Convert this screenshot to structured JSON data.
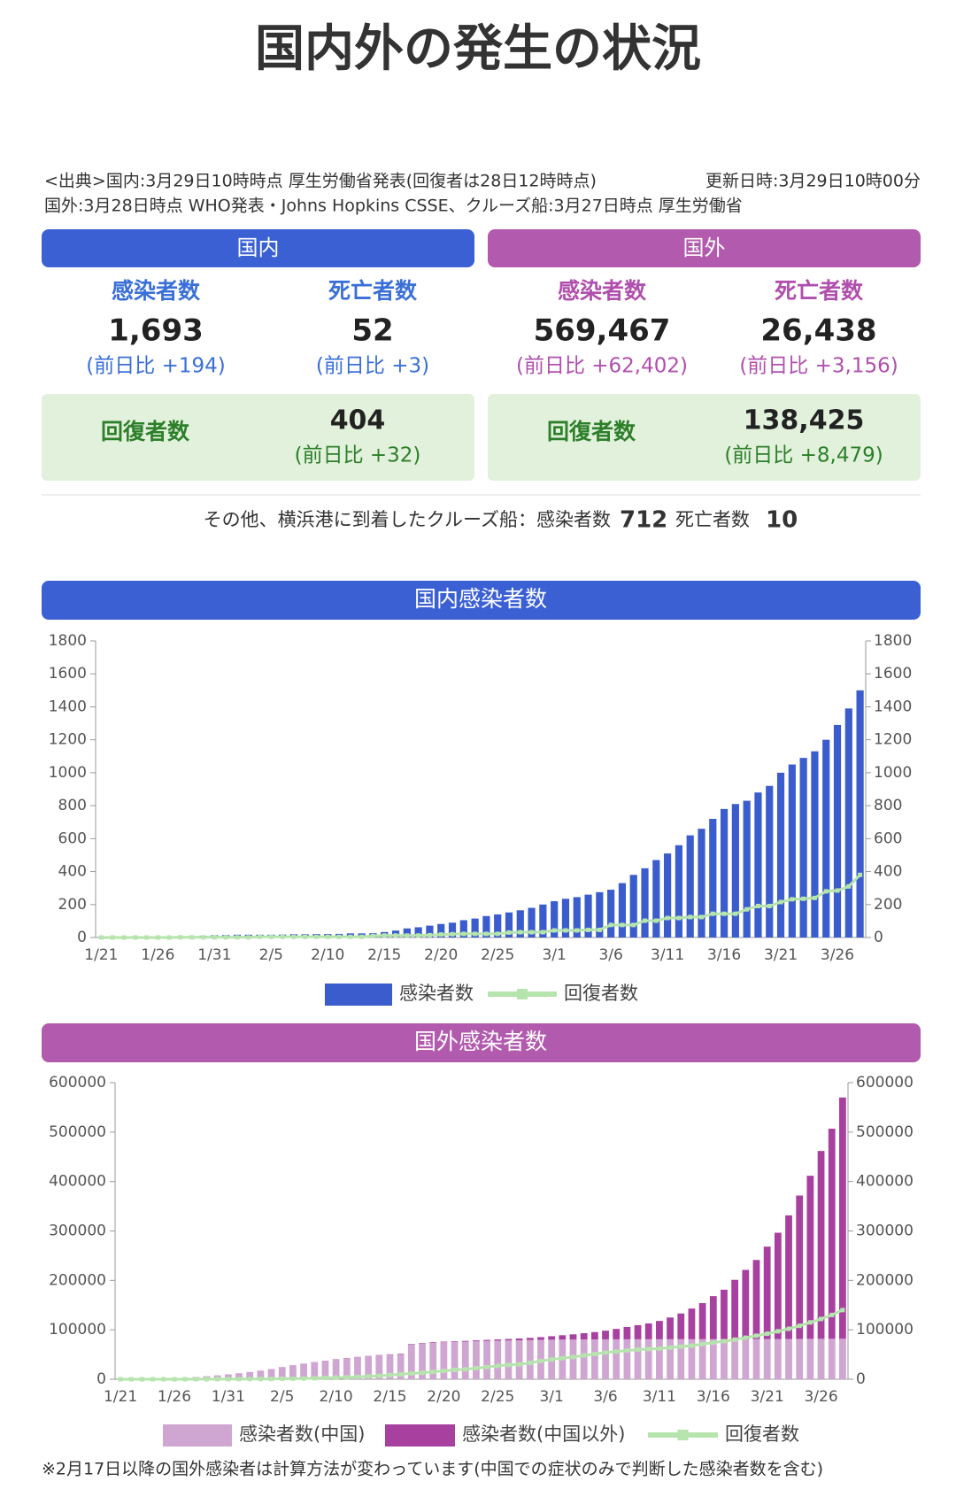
{
  "header": {
    "title": "国内外の発生の状況",
    "source_line1": "<出典>国内:3月29日10時時点 厚生労働省発表(回復者は28日12時時点)",
    "updated": "更新日時:3月29日10時00分",
    "source_line2": "国外:3月28日時点 WHO発表・Johns Hopkins CSSE、クルーズ船:3月27日時点 厚生労働省"
  },
  "panels": [
    {
      "title": "国内",
      "stats": [
        {
          "label": "感染者数",
          "value": "1,693",
          "change": "(前日比 +194)"
        },
        {
          "label": "死亡者数",
          "value": "52",
          "change": "(前日比 +3)"
        }
      ],
      "recovered": {
        "label": "回復者数",
        "value": "404",
        "change": "(前日比 +32)"
      }
    },
    {
      "title": "国外",
      "stats": [
        {
          "label": "感染者数",
          "value": "569,467",
          "change": "(前日比 +62,402)"
        },
        {
          "label": "死亡者数",
          "value": "26,438",
          "change": "(前日比 +3,156)"
        }
      ],
      "recovered": {
        "label": "回復者数",
        "value": "138,425",
        "change": "(前日比 +8,479)"
      }
    }
  ],
  "cruise": {
    "label": "その他、横浜港に到着したクルーズ船：感染者数",
    "infected": "712",
    "death_label": "死亡者数",
    "deaths": "10"
  },
  "chart_data": [
    {
      "type": "bar",
      "title": "国内感染者数",
      "categories": [
        "1/21",
        null,
        null,
        null,
        null,
        "1/26",
        null,
        null,
        null,
        null,
        "1/31",
        null,
        null,
        null,
        null,
        "2/5",
        null,
        null,
        null,
        null,
        "2/10",
        null,
        null,
        null,
        null,
        "2/15",
        null,
        null,
        null,
        null,
        "2/20",
        null,
        null,
        null,
        null,
        "2/25",
        null,
        null,
        null,
        null,
        "3/1",
        null,
        null,
        null,
        null,
        "3/6",
        null,
        null,
        null,
        null,
        "3/11",
        null,
        null,
        null,
        null,
        "3/16",
        null,
        null,
        null,
        null,
        "3/21",
        null,
        null,
        null,
        null,
        "3/26",
        null,
        null
      ],
      "series": [
        {
          "name": "感染者数",
          "type": "bar",
          "color": "#3a5ccc",
          "values": [
            1,
            1,
            1,
            1,
            2,
            3,
            4,
            6,
            7,
            11,
            14,
            15,
            17,
            17,
            17,
            17,
            18,
            20,
            20,
            21,
            21,
            22,
            25,
            25,
            26,
            33,
            42,
            55,
            62,
            72,
            82,
            90,
            105,
            115,
            130,
            140,
            152,
            165,
            180,
            200,
            220,
            235,
            245,
            260,
            275,
            290,
            330,
            380,
            420,
            470,
            510,
            560,
            620,
            660,
            720,
            780,
            810,
            830,
            880,
            920,
            1000,
            1050,
            1090,
            1130,
            1200,
            1290,
            1390,
            1500
          ]
        },
        {
          "name": "回復者数",
          "type": "line",
          "color": "#b6e4ad",
          "values": [
            0,
            0,
            0,
            0,
            0,
            0,
            0,
            1,
            1,
            1,
            1,
            1,
            1,
            1,
            4,
            4,
            4,
            4,
            4,
            4,
            4,
            4,
            4,
            4,
            9,
            12,
            12,
            12,
            12,
            14,
            18,
            20,
            22,
            22,
            22,
            22,
            30,
            32,
            32,
            32,
            43,
            43,
            43,
            46,
            46,
            76,
            76,
            76,
            102,
            102,
            118,
            118,
            124,
            124,
            144,
            144,
            144,
            171,
            191,
            191,
            215,
            232,
            235,
            240,
            280,
            285,
            310,
            380
          ]
        }
      ],
      "ylim": [
        0,
        1800
      ],
      "yticks": [
        0,
        200,
        400,
        600,
        800,
        1000,
        1200,
        1400,
        1600,
        1800
      ],
      "y2lim": [
        0,
        1800
      ],
      "y2ticks": [
        0,
        200,
        400,
        600,
        800,
        1000,
        1200,
        1400,
        1600,
        1800
      ]
    },
    {
      "type": "bar",
      "title": "国外感染者数",
      "stacked": true,
      "categories": [
        "1/21",
        null,
        null,
        null,
        null,
        "1/26",
        null,
        null,
        null,
        null,
        "1/31",
        null,
        null,
        null,
        null,
        "2/5",
        null,
        null,
        null,
        null,
        "2/10",
        null,
        null,
        null,
        null,
        "2/15",
        null,
        null,
        null,
        null,
        "2/20",
        null,
        null,
        null,
        null,
        "2/25",
        null,
        null,
        null,
        null,
        "3/1",
        null,
        null,
        null,
        null,
        "3/6",
        null,
        null,
        null,
        null,
        "3/11",
        null,
        null,
        null,
        null,
        "3/16",
        null,
        null,
        null,
        null,
        "3/21",
        null,
        null,
        null,
        null,
        "3/26",
        null,
        null
      ],
      "series": [
        {
          "name": "感染者数(中国)",
          "type": "bar",
          "color": "#cfa6d1",
          "values": [
            300,
            440,
            570,
            830,
            1300,
            2000,
            2800,
            4500,
            6000,
            7700,
            9700,
            11800,
            14400,
            17200,
            20400,
            24400,
            28000,
            31200,
            34500,
            37200,
            40200,
            42600,
            44600,
            46500,
            48500,
            49900,
            51200,
            70600,
            72400,
            74200,
            75000,
            75600,
            76200,
            76900,
            77600,
            78100,
            78500,
            78800,
            79300,
            79800,
            80000,
            80200,
            80300,
            80400,
            80600,
            80700,
            80800,
            80800,
            80900,
            80900,
            80900,
            80900,
            81000,
            81000,
            81000,
            81100,
            81100,
            81100,
            81200,
            81300,
            81300,
            81400,
            81500,
            81600,
            81700,
            81800,
            81900,
            82000
          ]
        },
        {
          "name": "感染者数(中国以外)",
          "type": "bar",
          "color": "#a8409f",
          "values": [
            5,
            10,
            20,
            30,
            40,
            50,
            60,
            70,
            80,
            100,
            130,
            150,
            160,
            180,
            190,
            200,
            220,
            270,
            300,
            320,
            400,
            440,
            460,
            490,
            530,
            600,
            700,
            800,
            850,
            900,
            1000,
            1200,
            1400,
            1700,
            2000,
            2400,
            2900,
            3600,
            4400,
            5300,
            7000,
            8800,
            10500,
            12700,
            14800,
            17500,
            21000,
            25000,
            28500,
            32000,
            37000,
            44000,
            52000,
            62000,
            73000,
            87000,
            100000,
            120000,
            140000,
            160000,
            187000,
            215000,
            250000,
            290000,
            330000,
            380000,
            425000,
            488000
          ]
        },
        {
          "name": "回復者数",
          "type": "line",
          "color": "#b6e4ad",
          "values": [
            0,
            0,
            0,
            30,
            40,
            50,
            60,
            100,
            120,
            140,
            200,
            250,
            330,
            480,
            620,
            900,
            1100,
            1500,
            2000,
            2600,
            3200,
            4000,
            4700,
            5900,
            6900,
            8500,
            10000,
            11800,
            13000,
            15000,
            16800,
            19000,
            20000,
            22600,
            24500,
            27000,
            29000,
            30000,
            33000,
            37000,
            40000,
            42500,
            45000,
            48000,
            51000,
            54000,
            56000,
            58000,
            60000,
            61000,
            62000,
            64000,
            66000,
            68000,
            71000,
            74000,
            77000,
            80000,
            84000,
            88000,
            92000,
            97000,
            102000,
            108000,
            115000,
            122000,
            130000,
            140000
          ]
        }
      ],
      "ylim": [
        0,
        600000
      ],
      "yticks": [
        0,
        100000,
        200000,
        300000,
        400000,
        500000,
        600000
      ],
      "y2lim": [
        0,
        600000
      ],
      "y2ticks": [
        0,
        100000,
        200000,
        300000,
        400000,
        500000,
        600000
      ]
    }
  ],
  "footnote": "※2月17日以降の国外感染者は計算方法が変わっています(中国での症状のみで判断した感染者数を含む)"
}
